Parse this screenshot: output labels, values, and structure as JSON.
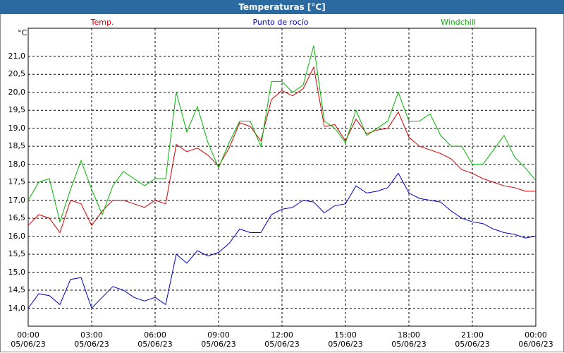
{
  "chart_data": {
    "type": "line",
    "title": "Temperaturas [°C]",
    "y_label": "°C",
    "x": [
      0,
      0.5,
      1,
      1.5,
      2,
      2.5,
      3,
      3.5,
      4,
      4.5,
      5,
      5.5,
      6,
      6.5,
      7,
      7.5,
      8,
      8.5,
      9,
      9.5,
      10,
      10.5,
      11,
      11.5,
      12,
      12.5,
      13,
      13.5,
      14,
      14.5,
      15,
      15.5,
      16,
      16.5,
      17,
      17.5,
      18,
      18.5,
      19,
      19.5,
      20,
      20.5,
      21,
      21.5,
      22,
      22.5,
      23,
      23.5,
      24
    ],
    "series": [
      {
        "name": "Temp.",
        "color": "#d40000",
        "values": [
          16.3,
          16.6,
          16.5,
          16.1,
          17.0,
          16.9,
          16.3,
          16.7,
          17.0,
          17.0,
          16.9,
          16.8,
          17.0,
          16.9,
          18.55,
          18.35,
          18.45,
          18.25,
          17.95,
          18.45,
          19.15,
          19.05,
          18.65,
          19.8,
          20.05,
          19.9,
          20.1,
          20.7,
          19.05,
          19.1,
          18.65,
          19.25,
          18.85,
          18.95,
          19.0,
          19.45,
          18.75,
          18.5,
          18.4,
          18.3,
          18.15,
          17.85,
          17.75,
          17.6,
          17.5,
          17.4,
          17.35,
          17.25,
          17.25
        ]
      },
      {
        "name": "Punto de rocío",
        "color": "#0000c8",
        "values": [
          14.0,
          14.4,
          14.35,
          14.1,
          14.8,
          14.85,
          14.0,
          14.3,
          14.6,
          14.5,
          14.3,
          14.2,
          14.3,
          14.1,
          15.5,
          15.25,
          15.6,
          15.45,
          15.55,
          15.8,
          16.2,
          16.1,
          16.1,
          16.6,
          16.75,
          16.8,
          17.0,
          16.95,
          16.65,
          16.85,
          16.9,
          17.4,
          17.2,
          17.25,
          17.35,
          17.75,
          17.2,
          17.05,
          17.0,
          16.95,
          16.7,
          16.5,
          16.4,
          16.35,
          16.2,
          16.1,
          16.05,
          15.95,
          16.0
        ]
      },
      {
        "name": "Windchill",
        "color": "#00b400",
        "values": [
          17.0,
          17.5,
          17.6,
          16.4,
          17.3,
          18.1,
          17.3,
          16.6,
          17.4,
          17.8,
          17.6,
          17.4,
          17.6,
          17.6,
          20.0,
          18.9,
          19.6,
          18.6,
          17.9,
          18.6,
          19.2,
          19.2,
          18.5,
          20.3,
          20.3,
          20.0,
          20.2,
          21.3,
          19.2,
          19.0,
          18.6,
          19.5,
          18.8,
          19.0,
          19.2,
          20.0,
          19.2,
          19.2,
          19.4,
          18.8,
          18.5,
          18.5,
          18.0,
          18.0,
          18.4,
          18.8,
          18.2,
          17.9,
          17.55
        ]
      }
    ],
    "xlim": [
      0,
      24
    ],
    "xticks": [
      {
        "value": 0,
        "label": "00:00\n05/06/23"
      },
      {
        "value": 3,
        "label": "03:00\n05/06/23"
      },
      {
        "value": 6,
        "label": "06:00\n05/06/23"
      },
      {
        "value": 9,
        "label": "09:00\n05/06/23"
      },
      {
        "value": 12,
        "label": "12:00\n05/06/23"
      },
      {
        "value": 15,
        "label": "15:00\n05/06/23"
      },
      {
        "value": 18,
        "label": "18:00\n05/06/23"
      },
      {
        "value": 21,
        "label": "21:00\n05/06/23"
      },
      {
        "value": 24,
        "label": "00:00\n06/06/23"
      }
    ],
    "ylim": [
      13.5,
      21.78
    ],
    "yticks": [
      {
        "value": 14,
        "label": "14,0"
      },
      {
        "value": 14.5,
        "label": "14,5"
      },
      {
        "value": 15,
        "label": "15,0"
      },
      {
        "value": 15.5,
        "label": "15,5"
      },
      {
        "value": 16,
        "label": "16,0"
      },
      {
        "value": 16.5,
        "label": "16,5"
      },
      {
        "value": 17,
        "label": "17,0"
      },
      {
        "value": 17.5,
        "label": "17,5"
      },
      {
        "value": 18,
        "label": "18,0"
      },
      {
        "value": 18.5,
        "label": "18,5"
      },
      {
        "value": 19,
        "label": "19,0"
      },
      {
        "value": 19.5,
        "label": "19,5"
      },
      {
        "value": 20,
        "label": "20,0"
      },
      {
        "value": 20.5,
        "label": "20,5"
      },
      {
        "value": 21,
        "label": "21,0"
      }
    ],
    "grid": true
  }
}
